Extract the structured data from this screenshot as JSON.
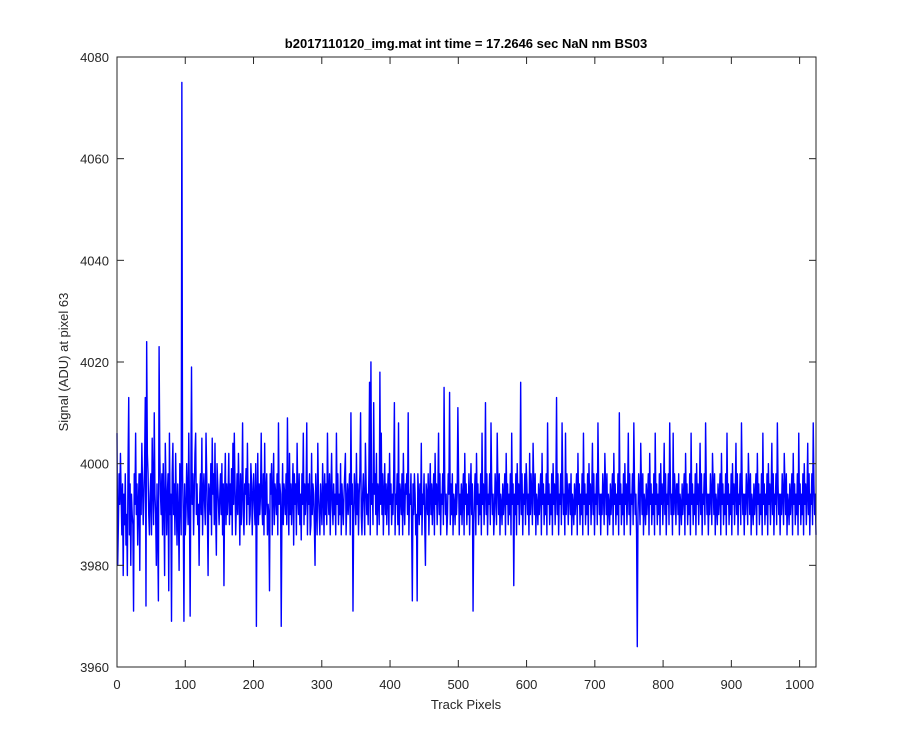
{
  "chart_data": {
    "type": "line",
    "title": "b2017110120_img.mat int time = 17.2646 sec  NaN nm BS03",
    "xlabel": "Track Pixels",
    "ylabel": "Signal (ADU) at pixel 63",
    "xlim": [
      0,
      1024
    ],
    "ylim": [
      3960,
      4080
    ],
    "xticks": [
      0,
      100,
      200,
      300,
      400,
      500,
      600,
      700,
      800,
      900,
      1000
    ],
    "yticks": [
      3960,
      3980,
      4000,
      4020,
      4040,
      4060,
      4080
    ],
    "grid": false,
    "line_color": "#0000ff",
    "series": [
      {
        "values": [
          4006,
          3980,
          3988,
          3998,
          3992,
          4002,
          3994,
          3986,
          3996,
          3978,
          3994,
          3988,
          3998,
          3984,
          3990,
          3978,
          4000,
          4013,
          3986,
          3996,
          3980,
          3994,
          3990,
          3988,
          3971,
          3998,
          3992,
          4006,
          3990,
          3996,
          3984,
          3992,
          3998,
          3979,
          3998,
          3990,
          4004,
          3996,
          3988,
          3994,
          4000,
          4013,
          3972,
          4024,
          4002,
          3998,
          3990,
          3986,
          3994,
          3998,
          3986,
          4005,
          3996,
          3988,
          4010,
          3994,
          3990,
          3980,
          3996,
          3986,
          3973,
          4023,
          4002,
          3994,
          3990,
          3998,
          3986,
          4000,
          3992,
          3978,
          4004,
          3996,
          3986,
          3994,
          3998,
          3975,
          4006,
          3990,
          3994,
          3969,
          3998,
          4004,
          3990,
          3996,
          3986,
          4002,
          3992,
          3984,
          3996,
          3990,
          3979,
          4000,
          3994,
          3986,
          4075,
          3998,
          3990,
          3969,
          3996,
          3986,
          3990,
          4000,
          3994,
          3988,
          4006,
          3992,
          3970,
          3996,
          4019,
          3992,
          3998,
          3986,
          3994,
          4002,
          4006,
          3990,
          3996,
          3988,
          3992,
          3980,
          3994,
          3998,
          3990,
          4005,
          3986,
          3994,
          3998,
          3992,
          3988,
          4006,
          3998,
          3990,
          3978,
          3996,
          3994,
          3990,
          4000,
          3986,
          4005,
          3994,
          3998,
          3988,
          4004,
          3990,
          3982,
          4000,
          3996,
          3992,
          3988,
          3994,
          3998,
          3990,
          4000,
          3986,
          3996,
          3976,
          3994,
          4002,
          3988,
          3996,
          3990,
          3994,
          4002,
          3988,
          3996,
          3990,
          3999,
          3986,
          4004,
          3992,
          4006,
          3996,
          3986,
          3992,
          3998,
          3990,
          4002,
          3994,
          3984,
          3998,
          3988,
          3994,
          4008,
          3990,
          3986,
          3996,
          3994,
          3999,
          3988,
          4004,
          3992,
          3996,
          3988,
          3990,
          4000,
          3996,
          3986,
          3994,
          3998,
          3992,
          3988,
          4000,
          3968,
          3994,
          4002,
          3988,
          3996,
          3990,
          3994,
          4006,
          3992,
          3988,
          3998,
          3986,
          4004,
          3990,
          3994,
          3998,
          3986,
          3992,
          3990,
          3975,
          3998,
          3994,
          4000,
          3986,
          3994,
          4002,
          3988,
          3996,
          3994,
          3990,
          3998,
          3986,
          4008,
          3992,
          3996,
          3994,
          3968,
          3990,
          4000,
          3988,
          3996,
          3994,
          3990,
          3998,
          3988,
          4009,
          3994,
          3986,
          4002,
          3990,
          3996,
          3988,
          3994,
          4000,
          3984,
          3998,
          3992,
          3996,
          3986,
          4004,
          3994,
          3990,
          3998,
          3988,
          3994,
          3985,
          3998,
          3992,
          4006,
          3988,
          3996,
          3990,
          3994,
          4008,
          3986,
          3996,
          3992,
          3998,
          3986,
          3988,
          4002,
          3990,
          3996,
          3994,
          3988,
          3980,
          3998,
          3992,
          3986,
          4004,
          3994,
          3990,
          3986,
          3996,
          3992,
          3988,
          4000,
          3994,
          3986,
          3998,
          3990,
          3996,
          3988,
          4006,
          3994,
          3990,
          3998,
          3986,
          3994,
          4002,
          3992,
          3988,
          3996,
          3990,
          3994,
          3986,
          4006,
          3992,
          3998,
          3988,
          3994,
          3990,
          4000,
          3986,
          3996,
          3992,
          3988,
          3994,
          3998,
          4002,
          3986,
          3992,
          3996,
          3990,
          3994,
          3998,
          3986,
          4010,
          3992,
          3996,
          3971,
          3990,
          3998,
          3994,
          3988,
          4002,
          3990,
          3996,
          3986,
          3994,
          3998,
          4010,
          3990,
          3986,
          3994,
          3998,
          3992,
          3986,
          4004,
          3996,
          3990,
          3994,
          3988,
          3998,
          4016,
          3986,
          4020,
          3992,
          3996,
          3988,
          4012,
          3994,
          3998,
          3990,
          4002,
          3986,
          3996,
          3994,
          3988,
          4018,
          3992,
          4006,
          3990,
          3998,
          3986,
          3994,
          4000,
          3990,
          3996,
          3988,
          3994,
          3998,
          3986,
          4002,
          3992,
          3996,
          3988,
          3994,
          3990,
          3998,
          4012,
          3986,
          3994,
          3992,
          3998,
          3988,
          4008,
          3986,
          3996,
          3994,
          3990,
          3998,
          3986,
          4002,
          3992,
          3988,
          3996,
          3994,
          3998,
          3990,
          4010,
          3986,
          3994,
          3992,
          3998,
          3988,
          3973,
          3996,
          3990,
          3998,
          3994,
          3986,
          3990,
          3973,
          3998,
          3994,
          3988,
          3996,
          3990,
          4004,
          3986,
          3994,
          3992,
          3998,
          3988,
          3980,
          3996,
          3994,
          3990,
          3998,
          3986,
          3994,
          4000,
          3990,
          3996,
          3988,
          3994,
          3998,
          3986,
          4002,
          3992,
          3996,
          3988,
          3994,
          4006,
          3990,
          3998,
          3986,
          3994,
          3992,
          3998,
          3988,
          4015,
          3996,
          3990,
          3994,
          3986,
          3990,
          3998,
          3994,
          4014,
          3988,
          3996,
          3990,
          3998,
          3986,
          3994,
          3992,
          3988,
          3996,
          3990,
          3994,
          4011,
          3998,
          3986,
          3994,
          3990,
          3996,
          3988,
          3994,
          3998,
          3986,
          4002,
          3992,
          3996,
          3988,
          3994,
          3990,
          3998,
          3986,
          3994,
          4000,
          3990,
          3996,
          3971,
          3988,
          3994,
          3998,
          3986,
          4002,
          3992,
          3996,
          3988,
          3994,
          3990,
          3998,
          3986,
          4006,
          3992,
          3996,
          3988,
          3994,
          4012,
          3990,
          3998,
          3986,
          3994,
          3992,
          3998,
          3988,
          4008,
          3996,
          3990,
          3994,
          3986,
          3990,
          3998,
          3994,
          3988,
          4006,
          3996,
          3990,
          3998,
          3986,
          3994,
          3992,
          3988,
          3996,
          3990,
          3994,
          3998,
          3986,
          4002,
          3992,
          3996,
          3988,
          3994,
          3990,
          3998,
          3986,
          4006,
          3992,
          3996,
          3976,
          3994,
          3990,
          3998,
          3986,
          4000,
          3992,
          3996,
          3988,
          3994,
          4016,
          3990,
          3998,
          3986,
          3994,
          3992,
          3998,
          3988,
          4000,
          3996,
          3990,
          3994,
          3986,
          4002,
          3990,
          3998,
          3994,
          3988,
          4004,
          3996,
          3990,
          3998,
          3986,
          3994,
          3992,
          3988,
          3996,
          3990,
          3994,
          3998,
          3986,
          4002,
          3992,
          3996,
          3988,
          3994,
          3990,
          3998,
          3986,
          4008,
          3992,
          3996,
          3988,
          3994,
          3990,
          3998,
          3986,
          4000,
          3992,
          3996,
          3988,
          3994,
          4013,
          3990,
          3998,
          3986,
          3994,
          3992,
          3998,
          3988,
          4008,
          3996,
          3990,
          3994,
          3986,
          4006,
          3990,
          3998,
          3994,
          3988,
          3996,
          3996,
          3990,
          3998,
          3986,
          3994,
          3992,
          3988,
          3996,
          3990,
          3994,
          3998,
          3986,
          4002,
          3992,
          3996,
          3988,
          3994,
          3990,
          3998,
          3986,
          4006,
          3992,
          3996,
          3988,
          3994,
          3990,
          3998,
          3986,
          4000,
          3992,
          3996,
          3988,
          3994,
          4004,
          3990,
          3998,
          3986,
          3994,
          3992,
          3998,
          3988,
          4008,
          3996,
          3990,
          3994,
          3986,
          3994,
          3990,
          3998,
          3994,
          3988,
          4002,
          3996,
          3990,
          3998,
          3986,
          3994,
          3992,
          3988,
          3996,
          3990,
          3994,
          3998,
          3986,
          4002,
          3992,
          3996,
          3988,
          3994,
          3990,
          3998,
          3986,
          4010,
          3992,
          3996,
          3988,
          3994,
          3990,
          3998,
          3986,
          4000,
          3992,
          3996,
          3988,
          3994,
          4006,
          3990,
          3998,
          3986,
          3994,
          3992,
          3998,
          3988,
          4008,
          3996,
          3990,
          3994,
          3986,
          3964,
          3990,
          3998,
          3994,
          3988,
          4004,
          3996,
          3990,
          3998,
          3986,
          3994,
          3992,
          3988,
          3996,
          3990,
          3994,
          3998,
          3986,
          4002,
          3992,
          3996,
          3988,
          3994,
          3990,
          3998,
          3986,
          4006,
          3992,
          3996,
          3988,
          3994,
          3990,
          3998,
          3986,
          4000,
          3992,
          3996,
          3988,
          3994,
          4004,
          3990,
          3998,
          3986,
          3994,
          3992,
          3998,
          3988,
          4008,
          3996,
          3990,
          3994,
          3986,
          4006,
          3990,
          3998,
          3994,
          3988,
          3996,
          3996,
          3990,
          3998,
          3986,
          3994,
          3992,
          3988,
          3996,
          3990,
          3994,
          3998,
          3986,
          4002,
          3992,
          3996,
          3988,
          3994,
          3990,
          3998,
          3986,
          4006,
          3992,
          3996,
          3988,
          3994,
          3990,
          3998,
          3986,
          4000,
          3992,
          3996,
          3988,
          3994,
          4004,
          3990,
          3998,
          3986,
          3994,
          3992,
          3998,
          3988,
          4008,
          3996,
          3990,
          3994,
          3986,
          3994,
          3990,
          3998,
          3994,
          3988,
          4002,
          3996,
          3990,
          3998,
          3986,
          3994,
          3992,
          3988,
          3996,
          3990,
          3994,
          3998,
          3986,
          4002,
          3992,
          3996,
          3988,
          3994,
          3990,
          3998,
          3986,
          4006,
          3992,
          3996,
          3988,
          3994,
          3990,
          3998,
          3986,
          4000,
          3992,
          3996,
          3988,
          3994,
          4004,
          3990,
          3998,
          3986,
          3994,
          3992,
          3998,
          3988,
          4008,
          3996,
          3990,
          3994,
          3986,
          3994,
          3990,
          3998,
          3994,
          3988,
          4002,
          3996,
          3990,
          3998,
          3986,
          3994,
          3992,
          3988,
          3996,
          3990,
          3994,
          3998,
          3986,
          4002,
          3992,
          3996,
          3988,
          3994,
          3990,
          3998,
          3986,
          4006,
          3992,
          3996,
          3988,
          3994,
          3990,
          3998,
          3986,
          4000,
          3992,
          3996,
          3988,
          3994,
          4004,
          3990,
          3998,
          3986,
          3994,
          3992,
          3998,
          3988,
          4008,
          3996,
          3990,
          3994,
          3986,
          3994,
          3990,
          3998,
          3994,
          3988,
          4002,
          3996,
          3990,
          3998,
          3986,
          3994,
          3992,
          3988,
          3996,
          3990,
          3994,
          3998,
          3986,
          4002,
          3992,
          3996,
          3988,
          3994,
          3990,
          3998,
          3986,
          4006,
          3992,
          3996,
          3988,
          3994,
          3990,
          3998,
          3986,
          4000,
          3992,
          3996,
          3988,
          3994,
          4004,
          3990,
          3998,
          3986,
          3994,
          3992,
          3998,
          3988,
          4008,
          3996,
          3990,
          3994,
          3986
        ]
      }
    ]
  }
}
